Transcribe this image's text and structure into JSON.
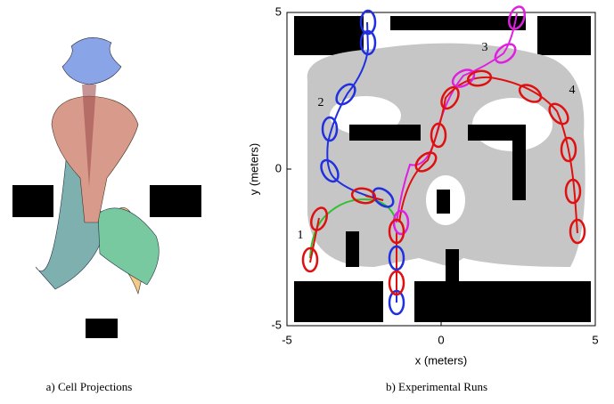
{
  "figure": {
    "left": {
      "caption": "a) Cell Projections"
    },
    "right": {
      "caption": "b) Experimental Runs",
      "x_label": "x (meters)",
      "y_label": "y (meters)",
      "xlim": [
        -5,
        5
      ],
      "ylim": [
        -5,
        5
      ],
      "xticks": [
        -5,
        0,
        5
      ],
      "yticks": [
        -5,
        0,
        5
      ],
      "run_labels": [
        "1",
        "2",
        "3",
        "4"
      ]
    }
  }
}
